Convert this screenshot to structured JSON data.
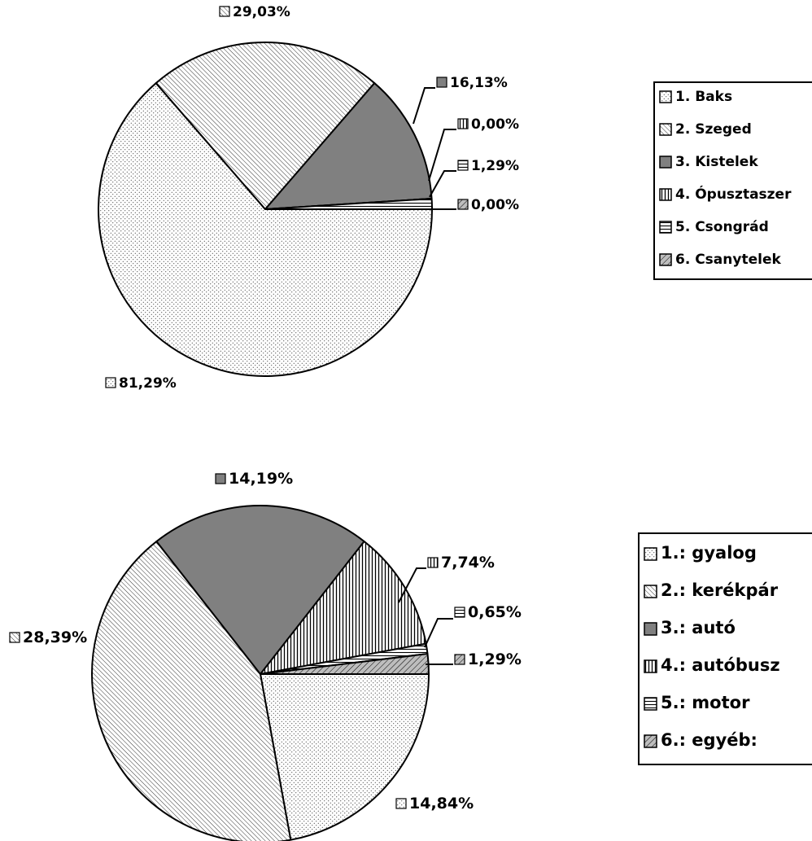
{
  "chart_data": [
    {
      "type": "pie",
      "title": "",
      "values": [
        81.29,
        29.03,
        16.13,
        0.0,
        1.29,
        0.0
      ],
      "labels": [
        "81,29%",
        "29,03%",
        "16,13%",
        "0,00%",
        "1,29%",
        "0,00%"
      ],
      "legend": [
        "1. Baks",
        "2. Szeged",
        "3. Kistelek",
        "4. Ópusztaszer",
        "5. Csongrád",
        "6. Csanytelek"
      ],
      "legend_position": "right"
    },
    {
      "type": "pie",
      "title": "",
      "values": [
        14.84,
        28.39,
        14.19,
        7.74,
        0.65,
        1.29
      ],
      "labels": [
        "14,84%",
        "28,39%",
        "14,19%",
        "7,74%",
        "0,65%",
        "1,29%"
      ],
      "legend": [
        "1.: gyalog",
        "2.: kerékpár",
        "3.: autó",
        "4.: autóbusz",
        "5.: motor",
        "6.: egyéb:"
      ],
      "legend_position": "right"
    }
  ]
}
